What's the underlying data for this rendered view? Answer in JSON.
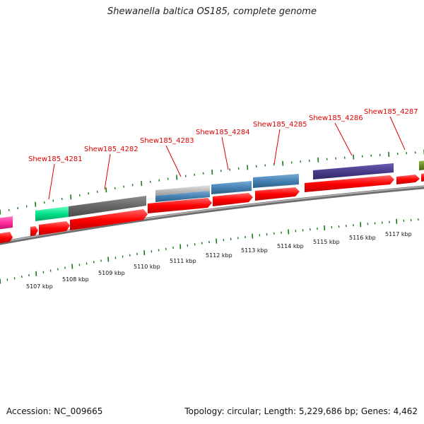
{
  "title": "Shewanella baltica OS185, complete genome",
  "footer": {
    "accession": "Accession: NC_009665",
    "summary": "Topology: circular; Length: 5,229,686 bp; Genes: 4,462"
  },
  "gene_labels": [
    "Shew185_4281",
    "Shew185_4282",
    "Shew185_4283",
    "Shew185_4284",
    "Shew185_4285",
    "Shew185_4286",
    "Shew185_4287"
  ],
  "kbp_labels": [
    "5107 kbp",
    "5108 kbp",
    "5109 kbp",
    "5110 kbp",
    "5111 kbp",
    "5112 kbp",
    "5113 kbp",
    "5114 kbp",
    "5115 kbp",
    "5116 kbp",
    "5117 kbp"
  ],
  "colors": {
    "label": "#e00000",
    "cds": "#ff0000",
    "backbone": "#8a8a8a",
    "tick": "#1a7a1a",
    "cog_gray": "#666666",
    "cog_lightgray": "#bdbdbd",
    "cog_steelblue": "#4682b4",
    "cog_indigo": "#483d8b",
    "cog_springgreen": "#00e28a",
    "cog_magenta": "#ff2b9c",
    "cog_olive": "#6b8e23"
  }
}
